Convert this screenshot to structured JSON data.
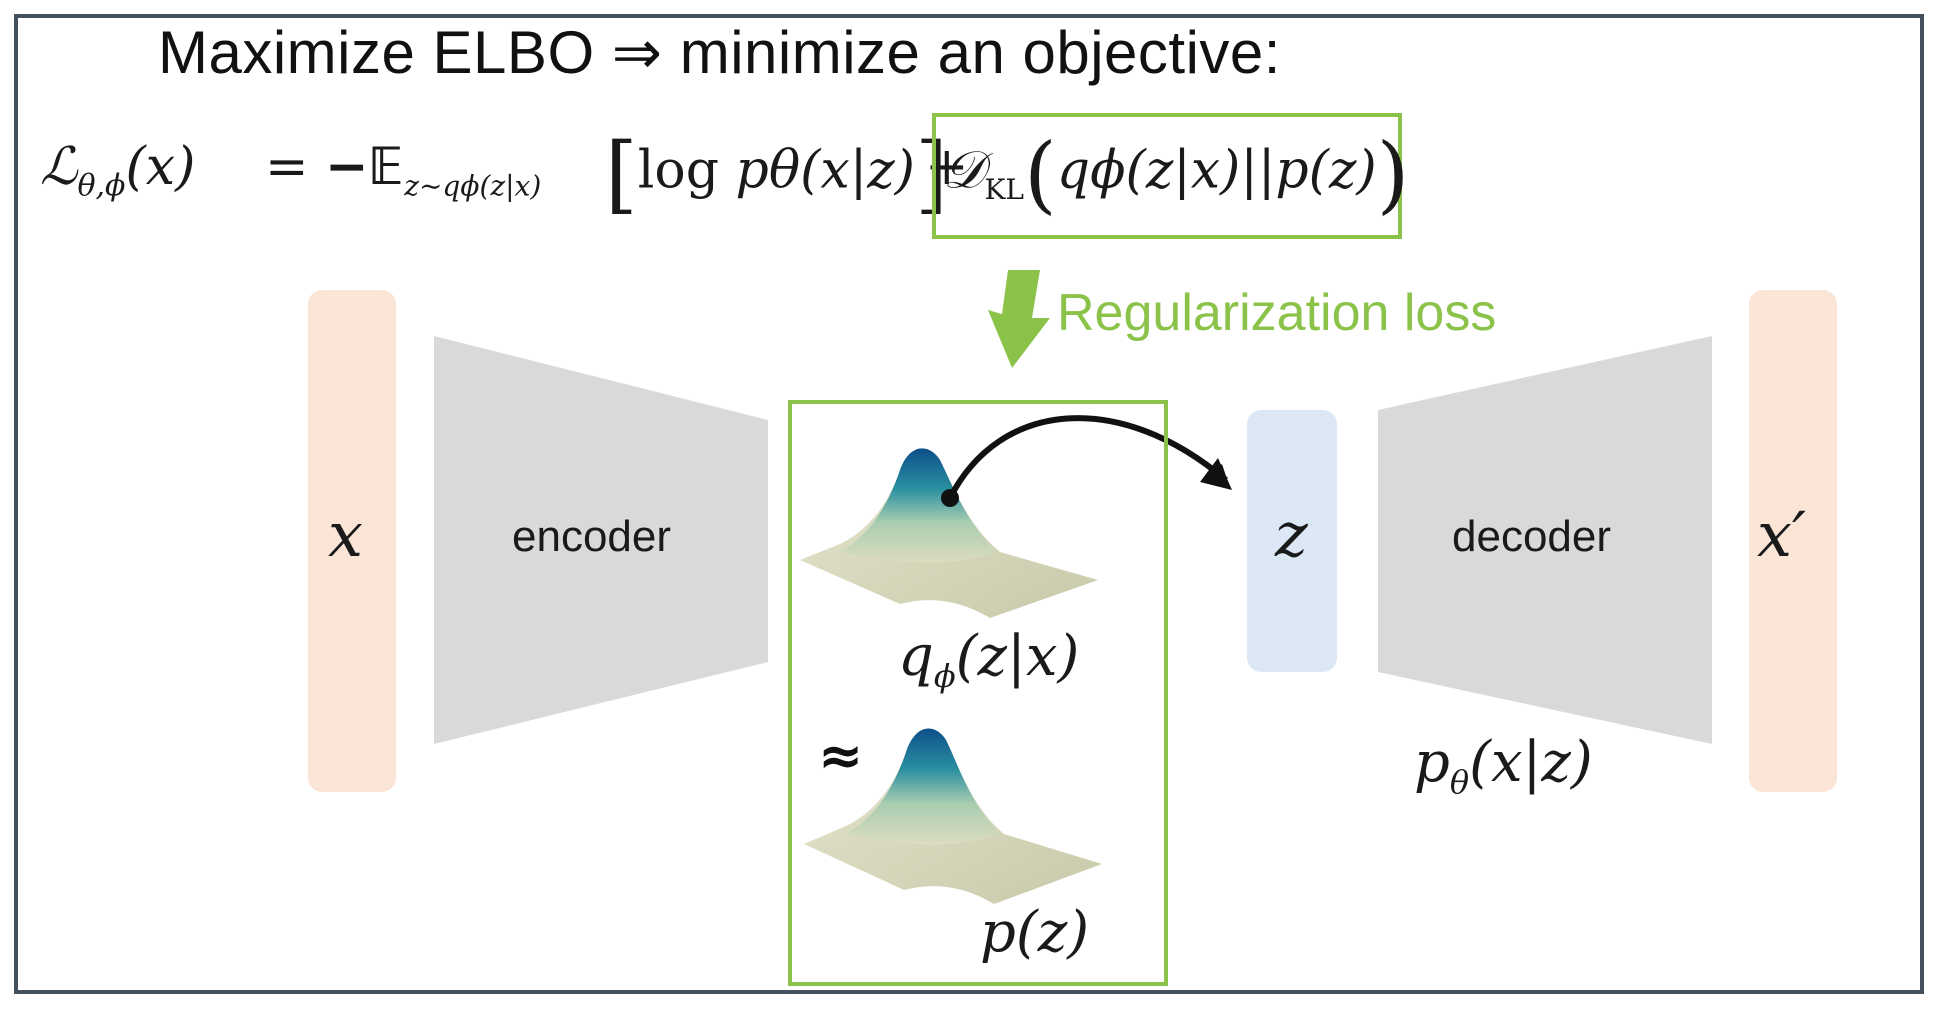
{
  "title": "Maximize ELBO ⇒ minimize an objective:",
  "formula": {
    "lhs": "ℒ",
    "lhs_sub": "θ,ϕ",
    "lhs_arg": "(x)",
    "equals": "=",
    "expectation": "−𝔼",
    "expectation_sub": "z∼qϕ(z|x)",
    "log_open": "[",
    "log_body_fn": "log ",
    "log_body": "pθ(x|z)",
    "log_close": "]",
    "plus": "+",
    "kl_symbol": "𝒟",
    "kl_sub": "KL",
    "kl_open": "(",
    "kl_body": "qϕ(z|x)||p(z)",
    "kl_close": ")"
  },
  "regularization_label": "Regularization loss",
  "encoder": {
    "label": "encoder"
  },
  "decoder": {
    "label": "decoder"
  },
  "input": {
    "label": "x"
  },
  "latent": {
    "label": "z"
  },
  "output": {
    "label": "x′"
  },
  "posterior": {
    "symbol": "q",
    "sub": "ϕ",
    "arg": "(z|x)"
  },
  "approx_symbol": "≈",
  "prior": {
    "label": "p(z)"
  },
  "likelihood": {
    "symbol": "p",
    "sub": "θ",
    "arg": "(x|z)"
  },
  "colors": {
    "accent_green": "#8bc34a",
    "io_fill": "#fbe5d6",
    "latent_fill": "#dce8f5",
    "network_fill": "#d9d9d9",
    "frame": "#44505c"
  },
  "icons": [
    "down-arrow-icon",
    "sample-arrow-icon",
    "gaussian-surface-icon"
  ]
}
